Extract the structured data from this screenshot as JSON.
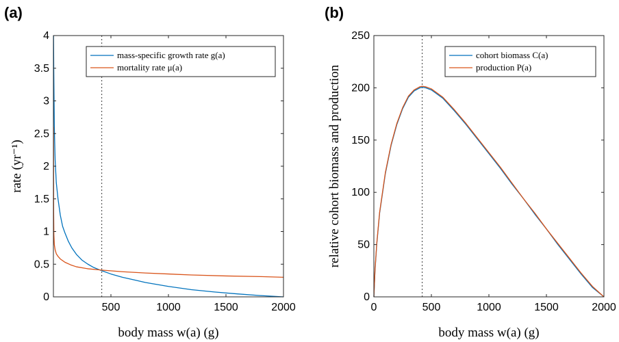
{
  "chart_data": [
    {
      "panel": "(a)",
      "type": "line",
      "xlabel": "body mass w(a) (g)",
      "ylabel": "rate (yr⁻¹)",
      "xlim": [
        0,
        2000
      ],
      "ylim": [
        0,
        4
      ],
      "xticks": [
        500,
        1000,
        1500,
        2000
      ],
      "yticks": [
        0,
        0.5,
        1,
        1.5,
        2,
        2.5,
        3,
        3.5,
        4
      ],
      "ytick_labels": [
        "0",
        "0.5",
        "1",
        "1.5",
        "2",
        "2.5",
        "3",
        "3.5",
        "4"
      ],
      "vline": 420,
      "legend_position": "top-right",
      "series": [
        {
          "name": "mass-specific growth rate g(a)",
          "color": "#0072BD",
          "x": [
            1,
            3,
            8,
            15,
            25,
            40,
            60,
            80,
            100,
            130,
            160,
            200,
            250,
            300,
            350,
            420,
            500,
            600,
            700,
            800,
            1000,
            1200,
            1400,
            1600,
            1800,
            2000
          ],
          "y": [
            4.0,
            3.5,
            2.6,
            2.1,
            1.75,
            1.5,
            1.25,
            1.08,
            0.98,
            0.85,
            0.75,
            0.65,
            0.56,
            0.5,
            0.45,
            0.4,
            0.35,
            0.3,
            0.26,
            0.22,
            0.16,
            0.11,
            0.075,
            0.045,
            0.02,
            0.0
          ]
        },
        {
          "name": "mortality rate μ(a)",
          "color": "#D95319",
          "x": [
            1,
            2,
            4,
            8,
            15,
            25,
            40,
            60,
            100,
            150,
            200,
            300,
            420,
            600,
            800,
            1000,
            1200,
            1500,
            1800,
            2000
          ],
          "y": [
            2.6,
            1.3,
            0.95,
            0.8,
            0.72,
            0.66,
            0.62,
            0.58,
            0.53,
            0.49,
            0.46,
            0.43,
            0.41,
            0.385,
            0.365,
            0.35,
            0.335,
            0.32,
            0.31,
            0.3
          ]
        }
      ]
    },
    {
      "panel": "(b)",
      "type": "line",
      "xlabel": "body mass w(a) (g)",
      "ylabel": "relative cohort biomass and production",
      "xlim": [
        0,
        2000
      ],
      "ylim": [
        0,
        250
      ],
      "xticks": [
        0,
        500,
        1000,
        1500,
        2000
      ],
      "yticks": [
        0,
        50,
        100,
        150,
        200,
        250
      ],
      "ytick_labels": [
        "0",
        "50",
        "100",
        "150",
        "200",
        "250"
      ],
      "vline": 420,
      "legend_position": "top-right",
      "series": [
        {
          "name": "cohort biomass C(a)",
          "color": "#0072BD",
          "x": [
            0,
            10,
            25,
            50,
            100,
            150,
            200,
            250,
            300,
            350,
            400,
            420,
            450,
            500,
            600,
            700,
            800,
            900,
            1000,
            1100,
            1200,
            1300,
            1400,
            1500,
            1600,
            1700,
            1800,
            1900,
            2000
          ],
          "y": [
            0,
            25,
            50,
            80,
            118,
            145,
            165,
            180,
            191,
            197,
            200,
            200.5,
            200,
            198,
            190,
            178,
            165,
            151,
            137,
            123,
            108,
            94,
            79,
            65,
            50,
            36,
            22,
            9,
            0
          ]
        },
        {
          "name": "production P(a)",
          "color": "#D95319",
          "x": [
            0,
            10,
            25,
            50,
            100,
            150,
            200,
            250,
            300,
            350,
            400,
            420,
            450,
            500,
            600,
            700,
            800,
            900,
            1000,
            1100,
            1200,
            1300,
            1400,
            1500,
            1600,
            1700,
            1800,
            1900,
            2000
          ],
          "y": [
            0,
            26,
            51,
            81,
            119,
            146,
            166,
            181,
            192,
            198,
            201,
            201.5,
            201,
            199,
            191,
            179,
            166,
            152,
            138,
            124,
            109,
            94,
            80,
            65,
            51,
            37,
            23,
            10,
            0
          ]
        }
      ]
    }
  ]
}
